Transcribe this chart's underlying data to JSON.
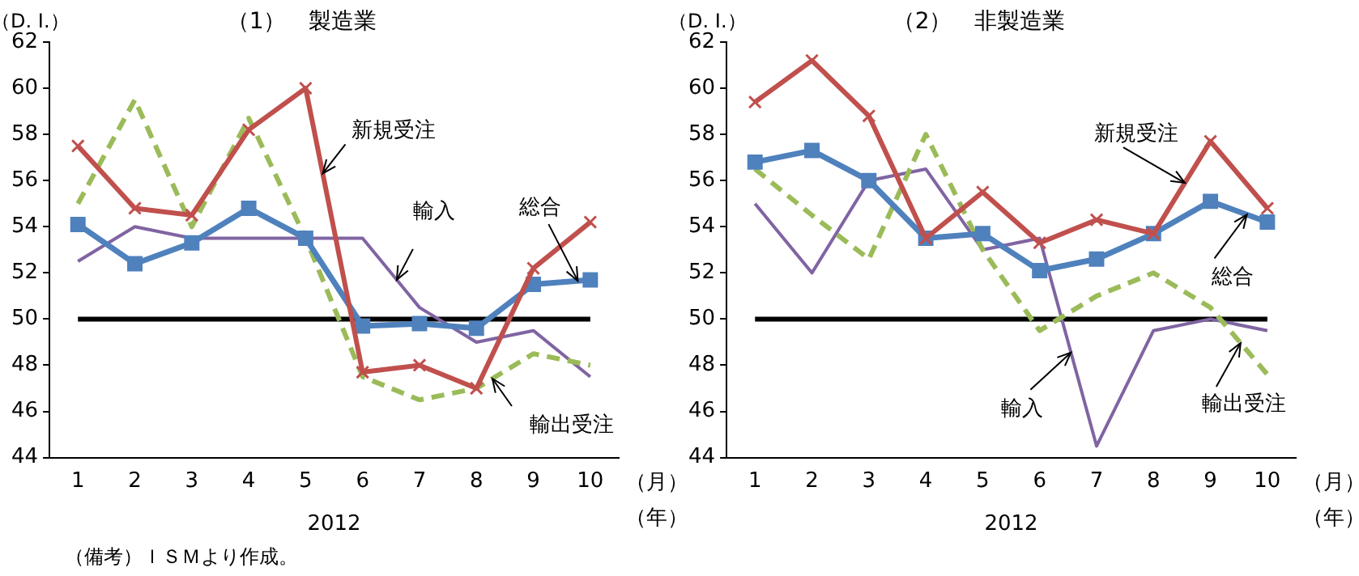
{
  "chart_data": [
    {
      "type": "line",
      "title": "（1）　製造業",
      "ylabel": "（D. I.）",
      "xlabel": "2012",
      "categories": [
        "1",
        "2",
        "3",
        "4",
        "5",
        "6",
        "7",
        "8",
        "9",
        "10"
      ],
      "ylim": [
        44,
        62
      ],
      "yticks": [
        44,
        46,
        48,
        50,
        52,
        54,
        56,
        58,
        60,
        62
      ],
      "grid": false,
      "legend": false,
      "series": [
        {
          "name": "新規受注",
          "color": "#c0504d",
          "marker": "cross",
          "line_style": "solid",
          "values": [
            57.5,
            54.8,
            54.5,
            58.2,
            60.0,
            47.7,
            48.0,
            47.0,
            52.2,
            54.2
          ]
        },
        {
          "name": "総合",
          "color": "#4f81bd",
          "marker": "square",
          "line_style": "solid",
          "values": [
            54.1,
            52.4,
            53.3,
            54.8,
            53.5,
            49.7,
            49.8,
            49.6,
            51.5,
            51.7
          ]
        },
        {
          "name": "輸出受注",
          "color": "#9bbb59",
          "marker": "none",
          "line_style": "dashed",
          "values": [
            55.0,
            59.5,
            54.0,
            58.7,
            53.5,
            47.5,
            46.5,
            47.0,
            48.5,
            48.0
          ]
        },
        {
          "name": "輸入",
          "color": "#8064a2",
          "marker": "none",
          "line_style": "solid",
          "values": [
            52.5,
            54.0,
            53.5,
            53.5,
            53.5,
            53.5,
            50.5,
            49.0,
            49.5,
            47.5
          ]
        }
      ],
      "ref_lines": [
        {
          "axis": "y",
          "value": 50,
          "color": "#000000"
        }
      ],
      "annotations": [
        "（月）",
        "（年）",
        "（備考）ＩＳＭより作成。"
      ]
    },
    {
      "type": "line",
      "title": "（2）　非製造業",
      "ylabel": "（D. I.）",
      "xlabel": "2012",
      "categories": [
        "1",
        "2",
        "3",
        "4",
        "5",
        "6",
        "7",
        "8",
        "9",
        "10"
      ],
      "ylim": [
        44,
        62
      ],
      "yticks": [
        44,
        46,
        48,
        50,
        52,
        54,
        56,
        58,
        60,
        62
      ],
      "grid": false,
      "legend": false,
      "series": [
        {
          "name": "新規受注",
          "color": "#c0504d",
          "marker": "cross",
          "line_style": "solid",
          "values": [
            59.4,
            61.2,
            58.8,
            53.5,
            55.5,
            53.3,
            54.3,
            53.7,
            57.7,
            54.8
          ]
        },
        {
          "name": "総合",
          "color": "#4f81bd",
          "marker": "square",
          "line_style": "solid",
          "values": [
            56.8,
            57.3,
            56.0,
            53.5,
            53.7,
            52.1,
            52.6,
            53.7,
            55.1,
            54.2
          ]
        },
        {
          "name": "輸出受注",
          "color": "#9bbb59",
          "marker": "none",
          "line_style": "dashed",
          "values": [
            56.5,
            54.5,
            52.6,
            58.0,
            53.0,
            49.5,
            51.0,
            52.0,
            50.5,
            47.6
          ]
        },
        {
          "name": "輸入",
          "color": "#8064a2",
          "marker": "none",
          "line_style": "solid",
          "values": [
            55.0,
            52.0,
            56.0,
            56.5,
            53.0,
            53.5,
            44.5,
            49.5,
            50.0,
            49.5
          ]
        }
      ],
      "ref_lines": [
        {
          "axis": "y",
          "value": 50,
          "color": "#000000"
        }
      ],
      "annotations": [
        "（月）",
        "（年）"
      ]
    }
  ]
}
